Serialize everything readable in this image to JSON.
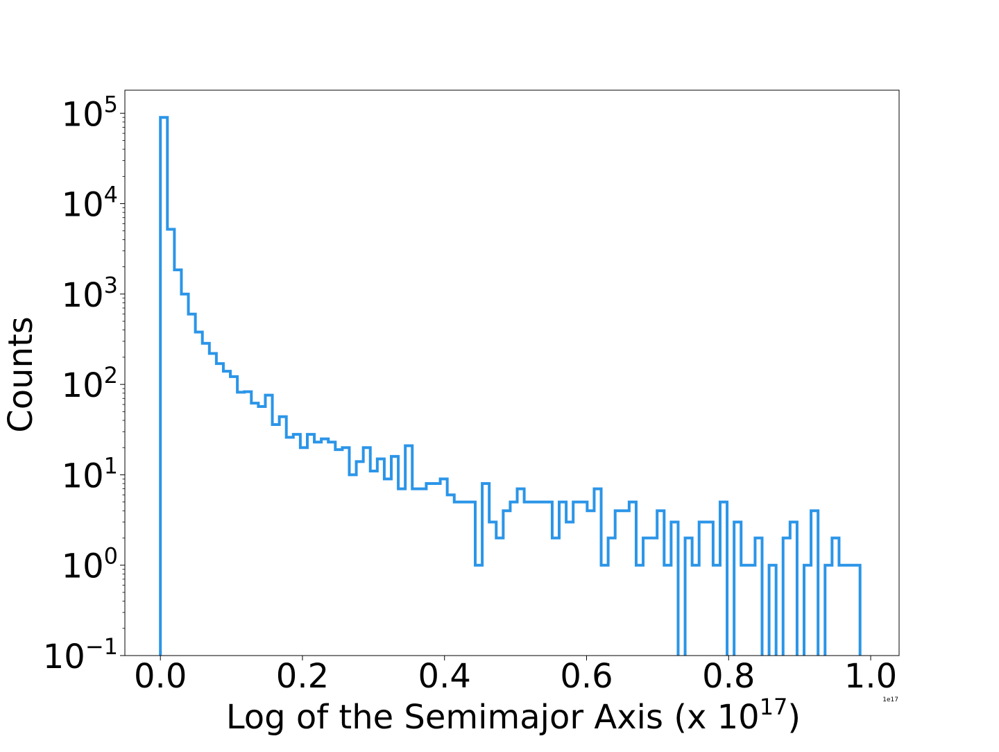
{
  "chart_data": {
    "type": "histogram",
    "title": "",
    "xlabel": "Log of the Semimajor Axis (x 10^17)",
    "xlabel_parts": {
      "main": "Log of the Semimajor Axis (x 10",
      "sup": "17",
      "tail": ")"
    },
    "ylabel": "Counts",
    "x_offset_label": "1e17",
    "x_scale": "linear",
    "y_scale": "log",
    "xlim": [
      -0.05,
      1.04
    ],
    "ylim": [
      0.1,
      180000
    ],
    "x_ticks": [
      {
        "value": 0.0,
        "label": "0.0"
      },
      {
        "value": 0.2,
        "label": "0.2"
      },
      {
        "value": 0.4,
        "label": "0.4"
      },
      {
        "value": 0.6,
        "label": "0.6"
      },
      {
        "value": 0.8,
        "label": "0.8"
      },
      {
        "value": 1.0,
        "label": "1.0"
      }
    ],
    "y_ticks": [
      {
        "value": 0.1,
        "base": "10",
        "exp": "−1"
      },
      {
        "value": 1,
        "base": "10",
        "exp": "0"
      },
      {
        "value": 10,
        "base": "10",
        "exp": "1"
      },
      {
        "value": 100,
        "base": "10",
        "exp": "2"
      },
      {
        "value": 1000,
        "base": "10",
        "exp": "3"
      },
      {
        "value": 10000,
        "base": "10",
        "exp": "4"
      },
      {
        "value": 100000,
        "base": "10",
        "exp": "5"
      }
    ],
    "bin_start": 0.0,
    "bin_width": 0.00985,
    "counts": [
      90000,
      5200,
      1850,
      1000,
      600,
      380,
      285,
      220,
      170,
      140,
      122,
      82,
      83,
      62,
      57,
      76,
      36,
      44,
      26,
      28,
      20,
      28,
      23,
      25,
      23,
      19,
      20,
      10,
      14,
      20,
      11,
      15,
      9,
      16,
      7,
      21,
      7,
      7,
      8,
      8,
      9,
      6,
      5,
      5,
      5,
      1,
      8,
      3,
      2,
      4,
      5,
      7,
      5,
      5,
      5,
      5,
      2,
      5,
      3,
      5,
      5,
      4,
      7,
      1,
      2,
      4,
      4,
      5,
      1,
      2,
      2,
      4,
      1,
      3,
      0,
      2,
      1,
      3,
      3,
      1,
      5,
      0,
      3,
      1,
      1,
      2,
      0,
      1,
      0,
      2,
      3,
      0,
      1,
      4,
      0,
      1,
      2,
      1,
      1,
      1,
      0
    ],
    "series": [
      {
        "name": "",
        "color": "#2b95e8"
      }
    ],
    "grid": false,
    "legend": "none"
  }
}
